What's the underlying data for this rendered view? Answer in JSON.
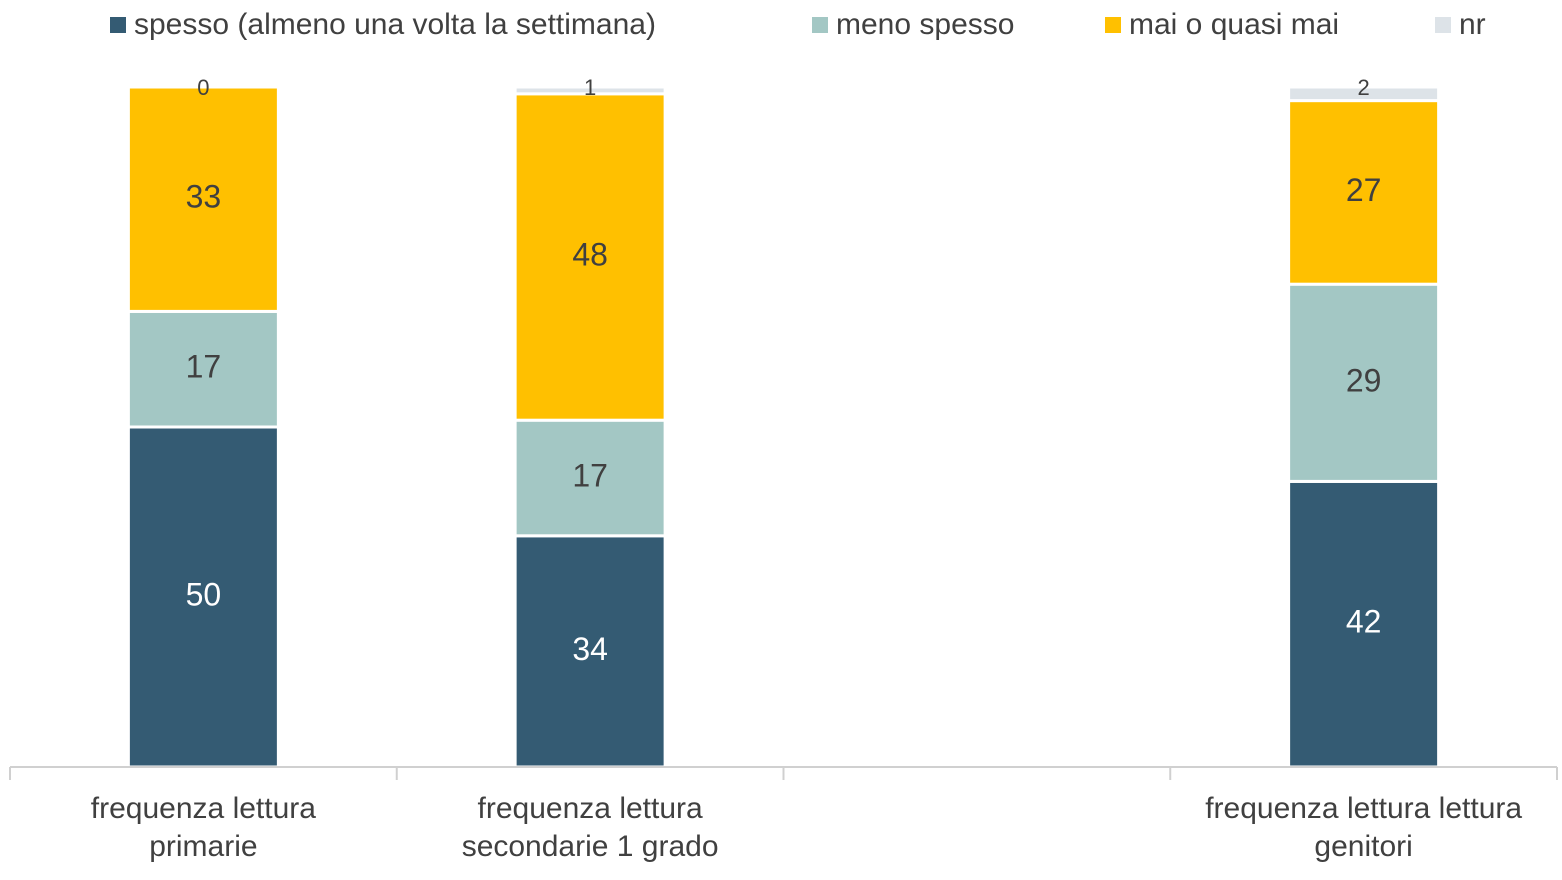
{
  "chart_data": {
    "type": "stacked_bar",
    "categories": [
      "frequenza lettura primarie",
      "frequenza lettura secondarie 1 grado",
      null,
      "frequenza lettura lettura genitori"
    ],
    "series": [
      {
        "name": "spesso (almeno una volta la settimana)",
        "color": "#345b73",
        "values": [
          50,
          34,
          null,
          42
        ]
      },
      {
        "name": "meno spesso",
        "color": "#a3c7c4",
        "values": [
          17,
          17,
          null,
          29
        ]
      },
      {
        "name": "mai o quasi mai",
        "color": "#ffc000",
        "values": [
          33,
          48,
          null,
          27
        ]
      },
      {
        "name": "nr",
        "color": "#dde3e8",
        "values": [
          0,
          1,
          null,
          2
        ]
      }
    ],
    "legend": "top"
  }
}
